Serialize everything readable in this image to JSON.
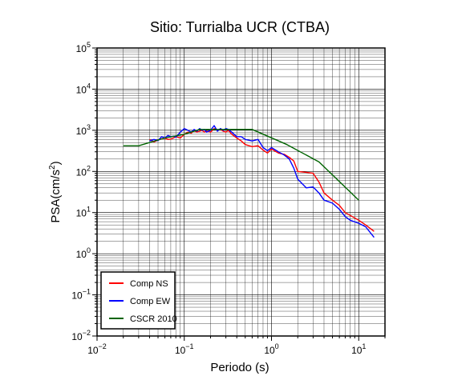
{
  "chart_data": {
    "type": "line",
    "title": "Sitio: Turrialba UCR (CTBA)",
    "xlabel": "Periodo (s)",
    "ylabel": "PSA(cm/s",
    "ylabel_sup": "2",
    "ylabel_close": ")",
    "x_scale": "log",
    "y_scale": "log",
    "xlim": [
      0.01,
      20
    ],
    "ylim": [
      0.01,
      100000
    ],
    "grid": true,
    "legend_position": "bottom-left",
    "x_ticks": [
      {
        "value": 0.01,
        "base": "10",
        "exp": "−2"
      },
      {
        "value": 0.1,
        "base": "10",
        "exp": "−1"
      },
      {
        "value": 1,
        "base": "10",
        "exp": "0"
      },
      {
        "value": 10,
        "base": "10",
        "exp": "1"
      }
    ],
    "y_ticks": [
      {
        "value": 0.01,
        "base": "10",
        "exp": "−2"
      },
      {
        "value": 0.1,
        "base": "10",
        "exp": "−1"
      },
      {
        "value": 1,
        "base": "10",
        "exp": "0"
      },
      {
        "value": 10,
        "base": "10",
        "exp": "1"
      },
      {
        "value": 100,
        "base": "10",
        "exp": "2"
      },
      {
        "value": 1000,
        "base": "10",
        "exp": "3"
      },
      {
        "value": 10000,
        "base": "10",
        "exp": "4"
      },
      {
        "value": 100000,
        "base": "10",
        "exp": "5"
      }
    ],
    "series": [
      {
        "name": "Comp NS",
        "color": "#ff0000",
        "x": [
          0.04,
          0.045,
          0.05,
          0.055,
          0.06,
          0.065,
          0.07,
          0.075,
          0.08,
          0.09,
          0.1,
          0.11,
          0.12,
          0.13,
          0.14,
          0.15,
          0.16,
          0.17,
          0.18,
          0.2,
          0.22,
          0.24,
          0.26,
          0.28,
          0.3,
          0.32,
          0.35,
          0.4,
          0.45,
          0.5,
          0.6,
          0.7,
          0.8,
          0.9,
          1.0,
          1.2,
          1.4,
          1.6,
          1.8,
          2.0,
          2.5,
          3.0,
          3.5,
          4.0,
          5.0,
          6.0,
          7.0,
          8.0,
          10.0,
          12.0,
          15.0
        ],
        "y": [
          600,
          520,
          580,
          620,
          640,
          600,
          610,
          650,
          700,
          650,
          800,
          900,
          850,
          980,
          900,
          950,
          1000,
          900,
          960,
          900,
          1100,
          1000,
          1050,
          950,
          900,
          1000,
          800,
          650,
          550,
          450,
          400,
          420,
          330,
          280,
          350,
          280,
          260,
          220,
          180,
          100,
          95,
          90,
          55,
          30,
          20,
          15,
          10,
          8.5,
          6.5,
          5,
          3.5
        ]
      },
      {
        "name": "Comp EW",
        "color": "#0000ff",
        "x": [
          0.04,
          0.045,
          0.05,
          0.055,
          0.06,
          0.065,
          0.07,
          0.075,
          0.08,
          0.09,
          0.1,
          0.11,
          0.12,
          0.13,
          0.14,
          0.15,
          0.16,
          0.17,
          0.18,
          0.2,
          0.22,
          0.24,
          0.26,
          0.28,
          0.3,
          0.32,
          0.35,
          0.4,
          0.45,
          0.5,
          0.6,
          0.7,
          0.8,
          0.9,
          1.0,
          1.2,
          1.4,
          1.6,
          1.8,
          2.0,
          2.5,
          3.0,
          3.5,
          4.0,
          5.0,
          6.0,
          7.0,
          8.0,
          10.0,
          12.0,
          15.0
        ],
        "y": [
          550,
          600,
          560,
          700,
          650,
          750,
          700,
          720,
          680,
          900,
          1100,
          1000,
          900,
          1050,
          950,
          1100,
          1000,
          1050,
          900,
          1000,
          1300,
          950,
          1100,
          1000,
          1100,
          1050,
          900,
          700,
          700,
          600,
          550,
          600,
          380,
          320,
          380,
          300,
          250,
          200,
          120,
          65,
          40,
          42,
          30,
          20,
          17,
          12,
          8,
          6.5,
          5.5,
          4.5,
          2.5
        ]
      },
      {
        "name": "CSCR 2010",
        "color": "#006400",
        "x": [
          0.02,
          0.03,
          0.06,
          0.1,
          0.15,
          0.6,
          1.5,
          3.5,
          10.0
        ],
        "y": [
          420,
          420,
          650,
          800,
          1050,
          1050,
          450,
          170,
          20
        ]
      }
    ]
  }
}
